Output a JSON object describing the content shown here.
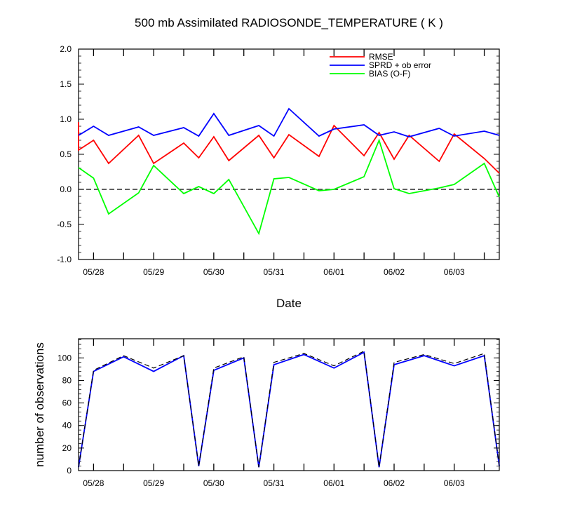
{
  "chart_data": [
    {
      "type": "line",
      "title": "500 mb Assimilated RADIOSONDE_TEMPERATURE ( K )",
      "xlabel": "Date",
      "ylabel": "",
      "ylim": [
        -1.0,
        2.0
      ],
      "yticks": [
        -1.0,
        -0.5,
        0.0,
        0.5,
        1.0,
        1.5,
        2.0
      ],
      "ytick_labels": [
        "-1.0",
        "-0.5",
        "0.0",
        "0.5",
        "1.0",
        "1.5",
        "2.0"
      ],
      "xlim": [
        27.75,
        34.75
      ],
      "xtick_labels": [
        "05/28",
        "05/29",
        "05/30",
        "05/31",
        "06/01",
        "06/02",
        "06/03"
      ],
      "xtick_values": [
        28,
        29,
        30,
        31,
        32,
        33,
        34
      ],
      "reference_line": {
        "y": 0.0,
        "style": "dashed",
        "color": "#000000"
      },
      "legend_position": "top-right",
      "series": [
        {
          "name": "RMSE",
          "color": "#ff0000",
          "x": [
            27.75,
            27.75,
            28.0,
            28.25,
            28.75,
            29.0,
            29.5,
            29.75,
            30.0,
            30.25,
            30.75,
            31.0,
            31.25,
            31.75,
            32.0,
            32.5,
            32.75,
            33.0,
            33.25,
            33.75,
            34.0,
            34.5,
            34.75
          ],
          "y": [
            0.96,
            0.56,
            0.7,
            0.37,
            0.77,
            0.37,
            0.66,
            0.45,
            0.75,
            0.41,
            0.77,
            0.45,
            0.78,
            0.47,
            0.91,
            0.48,
            0.81,
            0.43,
            0.77,
            0.4,
            0.79,
            0.44,
            0.23
          ]
        },
        {
          "name": "SPRD + ob error",
          "color": "#0000ff",
          "x": [
            27.75,
            28.0,
            28.25,
            28.75,
            29.0,
            29.5,
            29.75,
            30.0,
            30.25,
            30.75,
            31.0,
            31.25,
            31.75,
            32.0,
            32.5,
            32.75,
            33.0,
            33.25,
            33.75,
            34.0,
            34.5,
            34.75
          ],
          "y": [
            0.77,
            0.9,
            0.77,
            0.89,
            0.77,
            0.88,
            0.76,
            1.08,
            0.77,
            0.91,
            0.76,
            1.15,
            0.76,
            0.86,
            0.92,
            0.77,
            0.82,
            0.75,
            0.87,
            0.76,
            0.83,
            0.77
          ]
        },
        {
          "name": "BIAS (O-F)",
          "color": "#00ff00",
          "x": [
            27.75,
            28.0,
            28.25,
            28.75,
            29.0,
            29.5,
            29.75,
            30.0,
            30.25,
            30.75,
            31.0,
            31.25,
            31.75,
            32.0,
            32.5,
            32.75,
            33.0,
            33.25,
            33.75,
            34.0,
            34.5,
            34.75
          ],
          "y": [
            0.31,
            0.16,
            -0.35,
            -0.05,
            0.34,
            -0.06,
            0.04,
            -0.06,
            0.14,
            -0.63,
            0.15,
            0.17,
            -0.02,
            0.0,
            0.18,
            0.7,
            0.01,
            -0.06,
            0.02,
            0.07,
            0.37,
            -0.11
          ]
        }
      ]
    },
    {
      "type": "line",
      "title": "",
      "xlabel": "",
      "ylabel": "number of observations",
      "ylim": [
        0,
        117
      ],
      "yticks": [
        0,
        20,
        40,
        60,
        80,
        100
      ],
      "ytick_labels": [
        "0",
        "20",
        "40",
        "60",
        "80",
        "100"
      ],
      "xlim": [
        27.75,
        34.75
      ],
      "xtick_labels": [
        "05/28",
        "05/29",
        "05/30",
        "05/31",
        "06/01",
        "06/02",
        "06/03"
      ],
      "xtick_values": [
        28,
        29,
        30,
        31,
        32,
        33,
        34
      ],
      "series": [
        {
          "color": "#0000ff",
          "style": "solid",
          "x": [
            27.75,
            28.0,
            28.5,
            29.0,
            29.5,
            29.75,
            30.0,
            30.5,
            30.75,
            31.0,
            31.5,
            32.0,
            32.5,
            32.75,
            33.0,
            33.5,
            34.0,
            34.5,
            34.75
          ],
          "y": [
            3,
            88,
            101,
            88,
            102,
            4,
            89,
            100,
            3,
            94,
            103,
            91,
            105,
            3,
            94,
            102,
            93,
            102,
            4
          ]
        },
        {
          "color": "#000000",
          "style": "dashed",
          "x": [
            27.75,
            28.0,
            28.5,
            29.0,
            29.5,
            29.75,
            30.0,
            30.5,
            30.75,
            31.0,
            31.5,
            32.0,
            32.5,
            32.75,
            33.0,
            33.5,
            34.0,
            34.5,
            34.75
          ],
          "y": [
            3,
            89,
            102,
            91,
            102,
            4,
            91,
            101,
            3,
            96,
            104,
            93,
            106,
            3,
            96,
            103,
            95,
            104,
            4
          ]
        }
      ]
    }
  ]
}
